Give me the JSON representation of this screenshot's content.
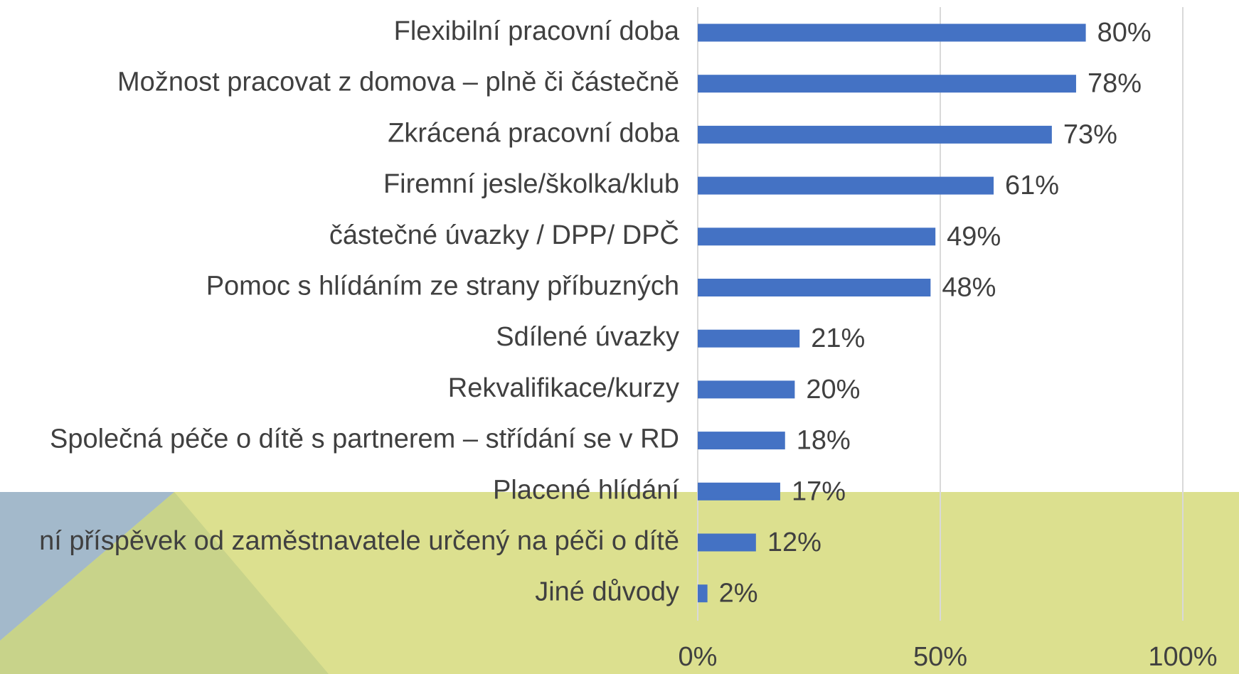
{
  "chart_data": {
    "type": "bar",
    "orientation": "horizontal",
    "categories": [
      "Flexibilní pracovní doba",
      "Možnost pracovat z domova – plně či částečně",
      "Zkrácená pracovní doba",
      "Firemní jesle/školka/klub",
      "částečné úvazky / DPP/ DPČ",
      "Pomoc s hlídáním ze strany příbuzných",
      "Sdílené úvazky",
      "Rekvalifikace/kurzy",
      "Společná péče o dítě s partnerem – střídání se v RD",
      "Placené hlídání",
      "ní příspěvek od zaměstnavatele určený na péči o dítě",
      "Jiné důvody"
    ],
    "values": [
      80,
      78,
      73,
      61,
      49,
      48,
      21,
      20,
      18,
      17,
      12,
      2
    ],
    "value_labels": [
      "80%",
      "78%",
      "73%",
      "61%",
      "49%",
      "48%",
      "21%",
      "20%",
      "18%",
      "17%",
      "12%",
      "2%"
    ],
    "color": "#4472c4",
    "xlim": [
      0,
      100
    ],
    "xticks": [
      {
        "value": 0,
        "label": "0%"
      },
      {
        "value": 50,
        "label": "50%"
      },
      {
        "value": 100,
        "label": "100%"
      }
    ],
    "grid": true
  }
}
